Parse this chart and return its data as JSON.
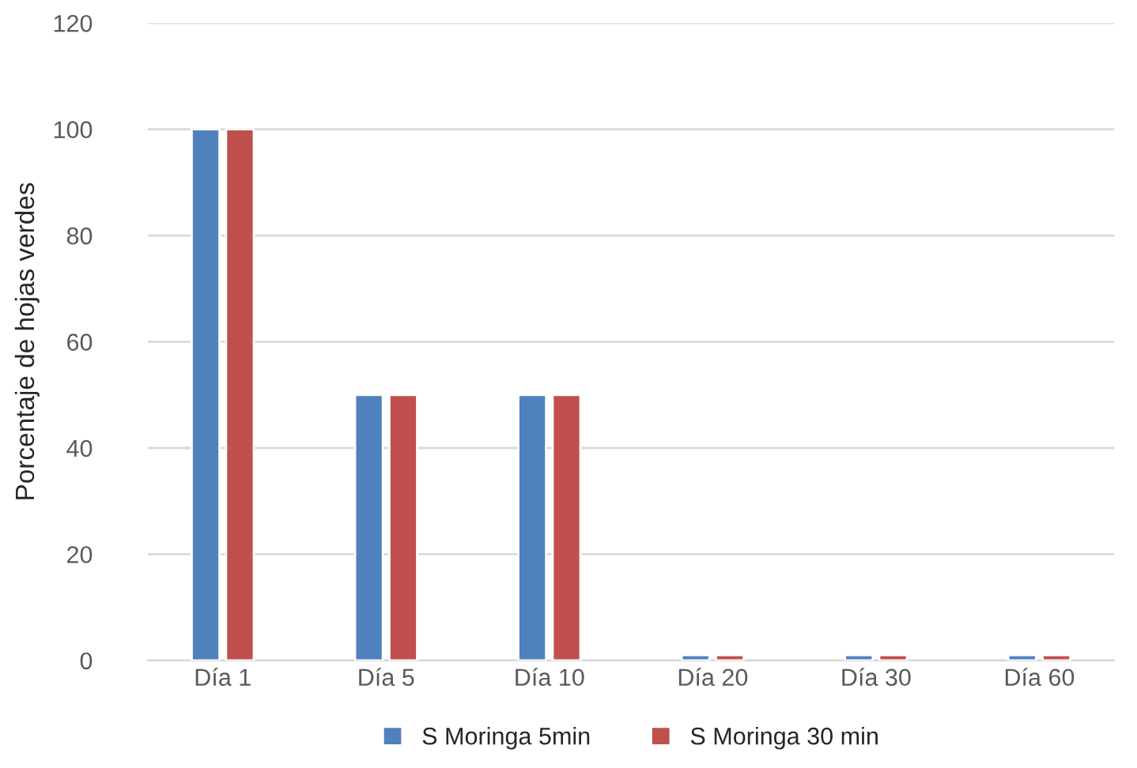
{
  "chart_data": {
    "type": "bar",
    "ylabel": "Porcentaje de hojas verdes",
    "categories": [
      "Día 1",
      "Día 5",
      "Día 10",
      "Día 20",
      "Día 30",
      "Día 60"
    ],
    "series": [
      {
        "name": "S Moringa 5min",
        "color": "#4f81bd",
        "values": [
          100,
          50,
          50,
          1,
          1,
          1
        ]
      },
      {
        "name": "S Moringa 30 min",
        "color": "#c0504d",
        "values": [
          100,
          50,
          50,
          1,
          1,
          1
        ]
      }
    ],
    "ylim": [
      0,
      120
    ],
    "yticks": [
      0,
      20,
      40,
      60,
      80,
      100,
      120
    ],
    "grid": "y",
    "legend": "bottom"
  }
}
